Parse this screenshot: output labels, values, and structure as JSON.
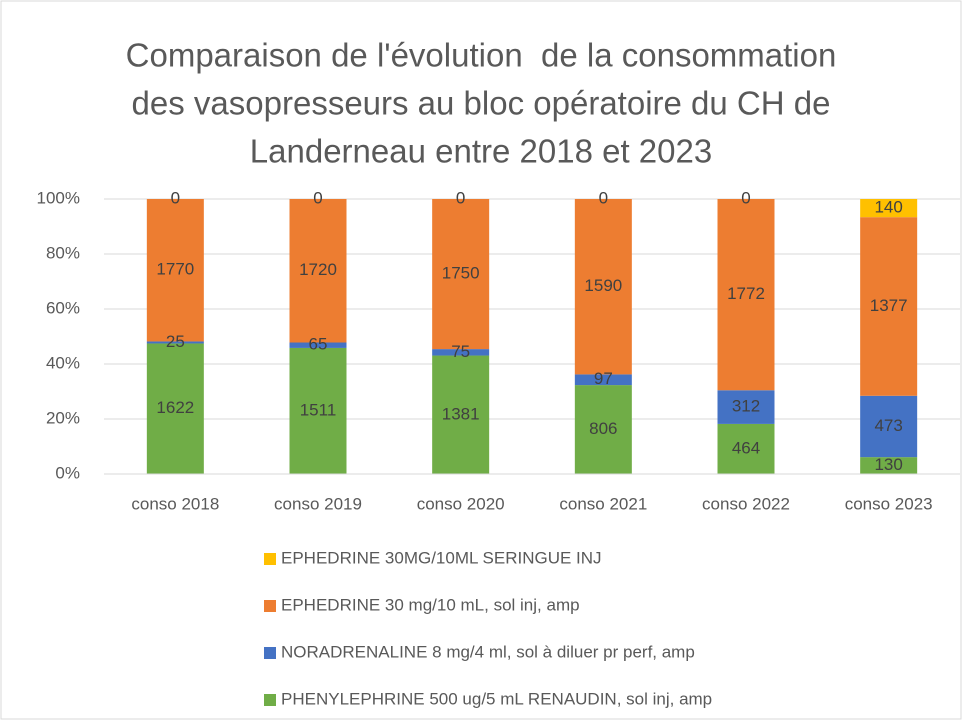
{
  "chart_data": {
    "type": "bar",
    "stacked": "percent",
    "title": [
      "Comparaison de l'évolution  de la consommation",
      "des vasopresseurs au bloc opératoire du CH de",
      "Landerneau entre 2018 et 2023"
    ],
    "categories": [
      "conso 2018",
      "conso 2019",
      "conso 2020",
      "conso 2021",
      "conso 2022",
      "conso 2023"
    ],
    "series": [
      {
        "name": "PHENYLEPHRINE 500 ug/5 mL RENAUDIN, sol inj, amp",
        "color": "#70ad47",
        "values": [
          1622,
          1511,
          1381,
          806,
          464,
          130
        ]
      },
      {
        "name": "NORADRENALINE 8 mg/4 ml, sol à diluer pr perf, amp",
        "color": "#4472c4",
        "values": [
          25,
          65,
          75,
          97,
          312,
          473
        ]
      },
      {
        "name": "EPHEDRINE 30 mg/10 mL, sol inj, amp",
        "color": "#ed7d31",
        "values": [
          1770,
          1720,
          1750,
          1590,
          1772,
          1377
        ]
      },
      {
        "name": "EPHEDRINE 30MG/10ML SERINGUE INJ",
        "color": "#ffc000",
        "values": [
          0,
          0,
          0,
          0,
          0,
          140
        ]
      }
    ],
    "ylim": [
      0,
      100
    ],
    "yticks": [
      {
        "value": 0,
        "label": "0%"
      },
      {
        "value": 20,
        "label": "20%"
      },
      {
        "value": 40,
        "label": "40%"
      },
      {
        "value": 60,
        "label": "60%"
      },
      {
        "value": 80,
        "label": "80%"
      },
      {
        "value": 100,
        "label": "100%"
      }
    ],
    "grid": true,
    "legend": "bottom"
  }
}
